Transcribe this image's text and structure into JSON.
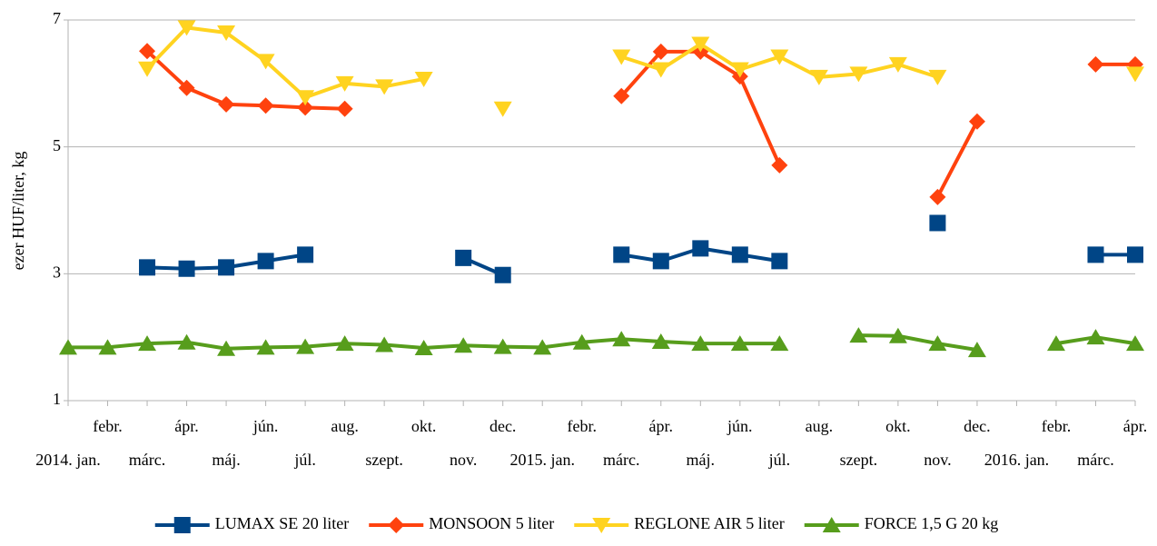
{
  "chart_data": {
    "type": "line",
    "y_label": "ezer HUF/liter, kg",
    "categories": [
      "2014. jan.",
      "febr.",
      "márc.",
      "ápr.",
      "máj.",
      "jún.",
      "júl.",
      "aug.",
      "szept.",
      "okt.",
      "nov.",
      "dec.",
      "2015. jan.",
      "febr.",
      "márc.",
      "ápr.",
      "máj.",
      "jún.",
      "júl.",
      "aug.",
      "szept.",
      "okt.",
      "nov.",
      "dec.",
      "2016. jan.",
      "febr.",
      "márc.",
      "ápr."
    ],
    "ylim": [
      1,
      7
    ],
    "yticks": [
      1,
      3,
      5,
      7
    ],
    "grid": true,
    "legend": "bottom",
    "series": [
      {
        "name": "LUMAX SE 20 liter",
        "color": "#004586",
        "marker": "square",
        "values": [
          null,
          null,
          3.1,
          3.08,
          3.1,
          3.2,
          3.3,
          null,
          null,
          null,
          3.25,
          2.98,
          null,
          null,
          3.3,
          3.2,
          3.4,
          3.3,
          3.2,
          null,
          null,
          null,
          3.8,
          null,
          null,
          null,
          3.3,
          3.3
        ]
      },
      {
        "name": "MONSOON 5 liter",
        "color": "#ff420e",
        "marker": "diamond",
        "values": [
          null,
          null,
          6.51,
          5.93,
          5.67,
          5.65,
          5.62,
          5.6,
          null,
          null,
          null,
          null,
          null,
          null,
          5.8,
          6.5,
          6.5,
          6.11,
          4.71,
          null,
          null,
          null,
          4.21,
          5.4,
          null,
          null,
          6.3,
          6.3
        ]
      },
      {
        "name": "REGLONE AIR 5 liter",
        "color": "#ffd320",
        "marker": "triangle-down",
        "values": [
          null,
          null,
          6.23,
          6.88,
          6.8,
          6.35,
          5.78,
          6.0,
          5.95,
          6.07,
          null,
          5.6,
          null,
          null,
          6.42,
          6.22,
          6.62,
          6.22,
          6.42,
          6.1,
          6.15,
          6.3,
          6.1,
          null,
          null,
          null,
          null,
          6.15
        ]
      },
      {
        "name": "FORCE 1,5 G 20 kg",
        "color": "#579d1c",
        "marker": "triangle-up",
        "values": [
          1.84,
          1.84,
          1.9,
          1.92,
          1.82,
          1.84,
          1.85,
          1.9,
          1.88,
          1.83,
          1.87,
          1.85,
          1.84,
          1.92,
          1.97,
          1.93,
          1.9,
          1.9,
          1.9,
          null,
          2.03,
          2.02,
          1.9,
          1.8,
          null,
          1.9,
          2.0,
          1.9
        ]
      }
    ]
  }
}
